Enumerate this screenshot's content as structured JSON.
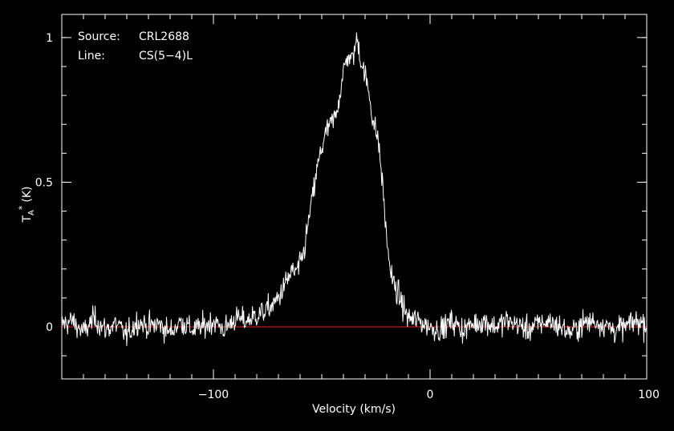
{
  "chart_data": {
    "type": "line",
    "annotations": {
      "source_label": "Source:",
      "source_value": "CRL2688",
      "line_label": "Line:",
      "line_value": "CS(5−4)L"
    },
    "xlabel": "Velocity (km/s)",
    "ylabel": {
      "main": "T",
      "sub": "A",
      "sup": "*",
      "unit": "(K)"
    },
    "xlim": [
      -170,
      100
    ],
    "ylim": [
      -0.18,
      1.08
    ],
    "xticks_major": [
      {
        "value": -100,
        "label": "−100"
      },
      {
        "value": 0,
        "label": "0"
      },
      {
        "value": 100,
        "label": "100"
      }
    ],
    "yticks_major": [
      {
        "value": 0,
        "label": "0"
      },
      {
        "value": 0.5,
        "label": "0.5"
      },
      {
        "value": 1,
        "label": "1"
      }
    ],
    "x_minor_step": 10,
    "y_minor_step": 0.1,
    "baseline": {
      "value": 0,
      "color": "#ff2020"
    },
    "colors": {
      "background": "#000000",
      "frame": "#ffffff",
      "trace": "#ffffff"
    },
    "series": [
      {
        "x": [
          -170,
          -165,
          -160,
          -155,
          -150,
          -145,
          -140,
          -135,
          -130,
          -125,
          -120,
          -115,
          -110,
          -105,
          -100,
          -95,
          -90,
          -85,
          -80,
          -75,
          -72,
          -70,
          -68,
          -66,
          -64,
          -62,
          -60,
          -58,
          -56,
          -54,
          -52,
          -50,
          -48,
          -46,
          -44,
          -42,
          -40,
          -38,
          -36,
          -34,
          -33,
          -32,
          -30,
          -28,
          -26,
          -24,
          -22,
          -20,
          -18,
          -16,
          -14,
          -12,
          -10,
          -5,
          0,
          5,
          10,
          15,
          20,
          25,
          30,
          35,
          40,
          45,
          50,
          55,
          60,
          65,
          70,
          75,
          80,
          85,
          90,
          95,
          100
        ],
        "y": [
          0.01,
          0.02,
          -0.02,
          0.03,
          -0.01,
          0.01,
          -0.03,
          0.02,
          0.0,
          0.01,
          -0.02,
          0.02,
          -0.01,
          0.0,
          0.02,
          -0.01,
          0.03,
          0.02,
          0.04,
          0.06,
          0.08,
          0.1,
          0.13,
          0.16,
          0.19,
          0.19,
          0.21,
          0.27,
          0.37,
          0.46,
          0.55,
          0.62,
          0.67,
          0.7,
          0.72,
          0.79,
          0.88,
          0.94,
          0.92,
          0.99,
          0.98,
          0.92,
          0.87,
          0.8,
          0.7,
          0.65,
          0.5,
          0.3,
          0.18,
          0.13,
          0.1,
          0.06,
          0.03,
          0.02,
          0.0,
          -0.01,
          0.02,
          -0.01,
          0.01,
          0.02,
          0.0,
          0.02,
          0.01,
          -0.01,
          0.01,
          0.02,
          0.0,
          -0.02,
          0.01,
          0.02,
          0.01,
          -0.01,
          0.0,
          0.02,
          0.01
        ]
      }
    ],
    "noise_rms": 0.03
  }
}
